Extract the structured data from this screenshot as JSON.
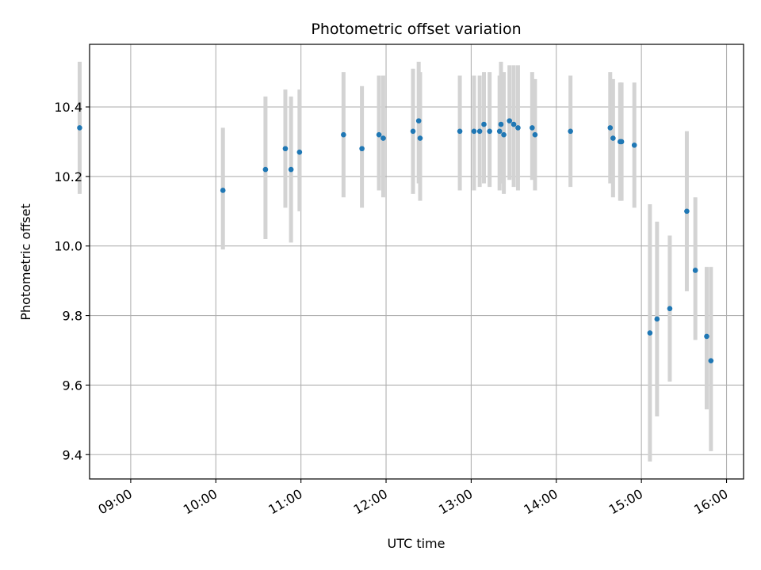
{
  "chart_data": {
    "type": "scatter",
    "title": "Photometric offset variation",
    "xlabel": "UTC time",
    "ylabel": "Photometric offset",
    "xlim": [
      "08:31",
      "16:12"
    ],
    "ylim": [
      9.33,
      10.58
    ],
    "x_ticks": [
      "09:00",
      "10:00",
      "11:00",
      "12:00",
      "13:00",
      "14:00",
      "15:00",
      "16:00"
    ],
    "y_ticks": [
      "9.4",
      "9.6",
      "9.8",
      "10.0",
      "10.2",
      "10.4"
    ],
    "grid": true,
    "series": [
      {
        "marker_color": "#1f77b4",
        "errorbar_color": "#d3d3d3",
        "points": [
          {
            "x": "08:24",
            "y": 10.34,
            "low": 10.15,
            "high": 10.53
          },
          {
            "x": "10:05",
            "y": 10.16,
            "low": 9.99,
            "high": 10.34
          },
          {
            "x": "10:35",
            "y": 10.22,
            "low": 10.02,
            "high": 10.43
          },
          {
            "x": "10:49",
            "y": 10.28,
            "low": 10.11,
            "high": 10.45
          },
          {
            "x": "10:53",
            "y": 10.22,
            "low": 10.01,
            "high": 10.43
          },
          {
            "x": "10:59",
            "y": 10.27,
            "low": 10.1,
            "high": 10.45
          },
          {
            "x": "11:30",
            "y": 10.32,
            "low": 10.14,
            "high": 10.5
          },
          {
            "x": "11:43",
            "y": 10.28,
            "low": 10.11,
            "high": 10.46
          },
          {
            "x": "11:55",
            "y": 10.32,
            "low": 10.16,
            "high": 10.49
          },
          {
            "x": "11:58",
            "y": 10.31,
            "low": 10.14,
            "high": 10.49
          },
          {
            "x": "12:19",
            "y": 10.33,
            "low": 10.15,
            "high": 10.51
          },
          {
            "x": "12:23",
            "y": 10.36,
            "low": 10.18,
            "high": 10.53
          },
          {
            "x": "12:24",
            "y": 10.31,
            "low": 10.13,
            "high": 10.5
          },
          {
            "x": "12:52",
            "y": 10.33,
            "low": 10.16,
            "high": 10.49
          },
          {
            "x": "13:02",
            "y": 10.33,
            "low": 10.16,
            "high": 10.49
          },
          {
            "x": "13:06",
            "y": 10.33,
            "low": 10.17,
            "high": 10.49
          },
          {
            "x": "13:09",
            "y": 10.35,
            "low": 10.18,
            "high": 10.5
          },
          {
            "x": "13:13",
            "y": 10.33,
            "low": 10.17,
            "high": 10.5
          },
          {
            "x": "13:21",
            "y": 10.35,
            "low": 10.18,
            "high": 10.53
          },
          {
            "x": "13:20",
            "y": 10.33,
            "low": 10.16,
            "high": 10.49
          },
          {
            "x": "13:23",
            "y": 10.32,
            "low": 10.15,
            "high": 10.5
          },
          {
            "x": "13:27",
            "y": 10.36,
            "low": 10.19,
            "high": 10.52
          },
          {
            "x": "13:30",
            "y": 10.35,
            "low": 10.17,
            "high": 10.52
          },
          {
            "x": "13:33",
            "y": 10.34,
            "low": 10.16,
            "high": 10.52
          },
          {
            "x": "13:43",
            "y": 10.34,
            "low": 10.19,
            "high": 10.5
          },
          {
            "x": "13:45",
            "y": 10.32,
            "low": 10.16,
            "high": 10.48
          },
          {
            "x": "14:10",
            "y": 10.33,
            "low": 10.17,
            "high": 10.49
          },
          {
            "x": "14:38",
            "y": 10.34,
            "low": 10.18,
            "high": 10.5
          },
          {
            "x": "14:40",
            "y": 10.31,
            "low": 10.14,
            "high": 10.48
          },
          {
            "x": "14:45",
            "y": 10.3,
            "low": 10.13,
            "high": 10.47
          },
          {
            "x": "14:46",
            "y": 10.3,
            "low": 10.13,
            "high": 10.47
          },
          {
            "x": "14:55",
            "y": 10.29,
            "low": 10.11,
            "high": 10.47
          },
          {
            "x": "15:06",
            "y": 9.75,
            "low": 9.38,
            "high": 10.12
          },
          {
            "x": "15:11",
            "y": 9.79,
            "low": 9.51,
            "high": 10.07
          },
          {
            "x": "15:20",
            "y": 9.82,
            "low": 9.61,
            "high": 10.03
          },
          {
            "x": "15:32",
            "y": 10.1,
            "low": 9.87,
            "high": 10.33
          },
          {
            "x": "15:38",
            "y": 9.93,
            "low": 9.73,
            "high": 10.14
          },
          {
            "x": "15:46",
            "y": 9.74,
            "low": 9.53,
            "high": 9.94
          },
          {
            "x": "15:49",
            "y": 9.67,
            "low": 9.41,
            "high": 9.94
          }
        ]
      }
    ]
  }
}
